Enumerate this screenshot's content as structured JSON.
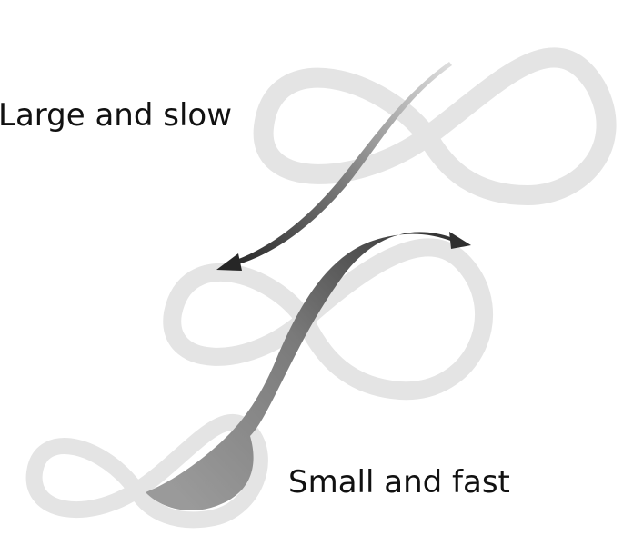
{
  "labels": {
    "large": "Large and slow",
    "small": "Small and fast"
  },
  "colors": {
    "loop_stroke": "#e4e4e4",
    "arrow_dark": "#2a2a2a",
    "arrow_mid": "#8c8c8c",
    "arrow_light": "#d0d0d0",
    "text": "#111111"
  }
}
